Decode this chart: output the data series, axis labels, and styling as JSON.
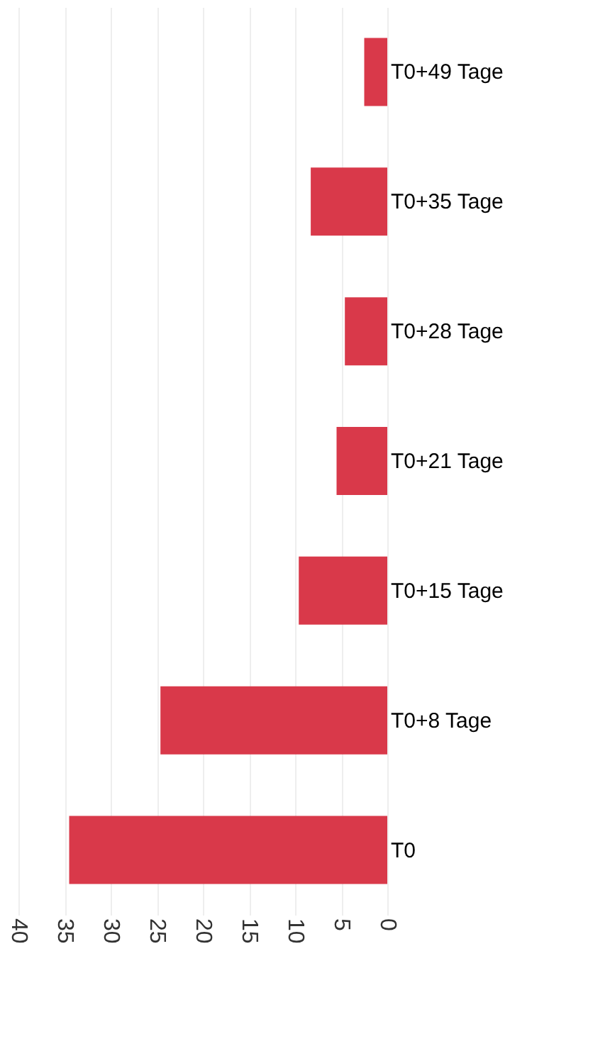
{
  "chart_data": {
    "type": "bar",
    "orientation": "horizontal",
    "categories": [
      "T0+49 Tage",
      "T0+35 Tage",
      "T0+28 Tage",
      "T0+21 Tage",
      "T0+15 Tage",
      "T0+8 Tage",
      "T0"
    ],
    "values": [
      2.5,
      8.3,
      4.6,
      5.5,
      9.6,
      24.6,
      34.5
    ],
    "color": "#d9394a",
    "xlim": [
      40,
      0
    ],
    "xticks": [
      40,
      35,
      30,
      25,
      20,
      15,
      10,
      5,
      0
    ],
    "grid": true
  }
}
